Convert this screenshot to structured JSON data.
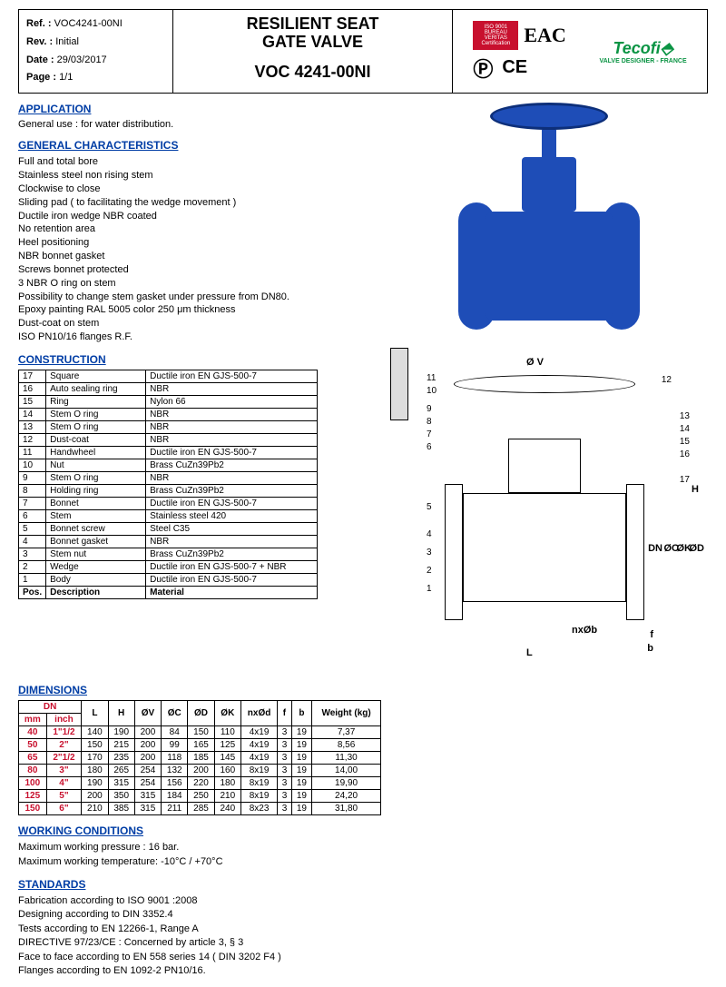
{
  "header": {
    "ref_label": "Ref. :",
    "ref_value": "VOC4241-00NI",
    "rev_label": "Rev. :",
    "rev_value": "Initial",
    "date_label": "Date :",
    "date_value": "29/03/2017",
    "page_label": "Page :",
    "page_value": "1/1",
    "title_line1": "RESILIENT SEAT",
    "title_line2": "GATE VALVE",
    "product_code": "VOC 4241-00NI",
    "cert_bv": "ISO 9001 BUREAU VERITAS Certification",
    "eac": "EAC",
    "ce": "CE",
    "brand": "Tecofi",
    "brand_sub": "VALVE DESIGNER - FRANCE"
  },
  "sections": {
    "application_title": "APPLICATION",
    "application_text": "General use : for water distribution.",
    "gen_char_title": "GENERAL CHARACTERISTICS",
    "gen_chars": [
      "Full and total bore",
      "Stainless steel non rising stem",
      "Clockwise to close",
      "Sliding pad ( to facilitating the wedge movement )",
      "Ductile iron wedge NBR coated",
      "No retention area",
      "Heel positioning",
      "NBR bonnet gasket",
      "Screws bonnet protected",
      "3 NBR O ring on stem",
      "Possibility to change stem gasket under pressure from DN80.",
      "Epoxy painting RAL 5005 color 250 μm thickness",
      "Dust-coat on stem",
      "ISO PN10/16 flanges R.F."
    ],
    "construction_title": "CONSTRUCTION",
    "dimensions_title": "DIMENSIONS",
    "working_title": "WORKING CONDITIONS",
    "working_lines": [
      "Maximum working pressure : 16 bar.",
      "Maximum working temperature: -10°C / +70°C"
    ],
    "standards_title": "STANDARDS",
    "standards_lines": [
      "Fabrication according to ISO 9001 :2008",
      "Designing according to DIN 3352.4",
      "Tests according to EN 12266-1, Range A",
      "DIRECTIVE 97/23/CE : Concerned by article 3, § 3",
      "Face to face according to EN 558 series 14 ( DIN 3202 F4 )",
      "Flanges according to EN 1092-2 PN10/16."
    ]
  },
  "construction": {
    "header": [
      "Pos.",
      "Description",
      "Material"
    ],
    "rows": [
      [
        "17",
        "Square",
        "Ductile iron EN GJS-500-7"
      ],
      [
        "16",
        "Auto sealing ring",
        "NBR"
      ],
      [
        "15",
        "Ring",
        "Nylon 66"
      ],
      [
        "14",
        "Stem O ring",
        "NBR"
      ],
      [
        "13",
        "Stem O ring",
        "NBR"
      ],
      [
        "12",
        "Dust-coat",
        "NBR"
      ],
      [
        "11",
        "Handwheel",
        "Ductile iron EN GJS-500-7"
      ],
      [
        "10",
        "Nut",
        "Brass CuZn39Pb2"
      ],
      [
        "9",
        "Stem O ring",
        "NBR"
      ],
      [
        "8",
        "Holding ring",
        "Brass CuZn39Pb2"
      ],
      [
        "7",
        "Bonnet",
        "Ductile iron EN GJS-500-7"
      ],
      [
        "6",
        "Stem",
        "Stainless steel 420"
      ],
      [
        "5",
        "Bonnet screw",
        "Steel C35"
      ],
      [
        "4",
        "Bonnet gasket",
        "NBR"
      ],
      [
        "3",
        "Stem nut",
        "Brass CuZn39Pb2"
      ],
      [
        "2",
        "Wedge",
        "Ductile iron EN GJS-500-7 + NBR"
      ],
      [
        "1",
        "Body",
        "Ductile iron EN GJS-500-7"
      ]
    ]
  },
  "dimensions": {
    "dn_header": "DN",
    "cols": [
      "mm",
      "inch",
      "L",
      "H",
      "ØV",
      "ØC",
      "ØD",
      "ØK",
      "nxØd",
      "f",
      "b",
      "Weight (kg)"
    ],
    "rows": [
      [
        "40",
        "1\"1/2",
        "140",
        "190",
        "200",
        "84",
        "150",
        "110",
        "4x19",
        "3",
        "19",
        "7,37"
      ],
      [
        "50",
        "2\"",
        "150",
        "215",
        "200",
        "99",
        "165",
        "125",
        "4x19",
        "3",
        "19",
        "8,56"
      ],
      [
        "65",
        "2\"1/2",
        "170",
        "235",
        "200",
        "118",
        "185",
        "145",
        "4x19",
        "3",
        "19",
        "11,30"
      ],
      [
        "80",
        "3\"",
        "180",
        "265",
        "254",
        "132",
        "200",
        "160",
        "8x19",
        "3",
        "19",
        "14,00"
      ],
      [
        "100",
        "4\"",
        "190",
        "315",
        "254",
        "156",
        "220",
        "180",
        "8x19",
        "3",
        "19",
        "19,90"
      ],
      [
        "125",
        "5\"",
        "200",
        "350",
        "315",
        "184",
        "250",
        "210",
        "8x19",
        "3",
        "19",
        "24,20"
      ],
      [
        "150",
        "6\"",
        "210",
        "385",
        "315",
        "211",
        "285",
        "240",
        "8x23",
        "3",
        "19",
        "31,80"
      ]
    ]
  },
  "diagram": {
    "callouts": [
      "1",
      "2",
      "3",
      "4",
      "5",
      "6",
      "7",
      "8",
      "9",
      "10",
      "11",
      "12",
      "13",
      "14",
      "15",
      "16",
      "17"
    ],
    "dims": {
      "v": "Ø V",
      "h": "H",
      "dn": "DN",
      "oc": "ØC",
      "ok": "ØK",
      "od": "ØD",
      "l": "L",
      "nxob": "nxØb",
      "f": "f",
      "b": "b"
    }
  },
  "colors": {
    "blue": "#003da5",
    "valve_blue": "#1e4db7",
    "red": "#c8102e",
    "green": "#0b9444"
  }
}
